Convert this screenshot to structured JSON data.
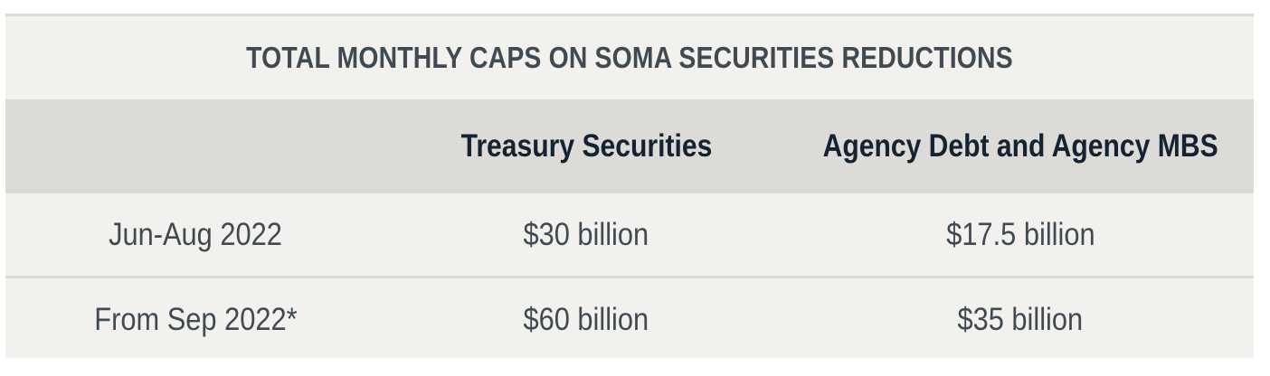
{
  "table": {
    "title": "TOTAL MONTHLY CAPS ON SOMA SECURITIES REDUCTIONS",
    "headers": [
      "",
      "Treasury Securities",
      "Agency Debt and Agency MBS"
    ],
    "rows": [
      {
        "period": "Jun-Aug 2022",
        "treasury": "$30 billion",
        "agency": "$17.5 billion"
      },
      {
        "period": "From Sep 2022*",
        "treasury": "$60 billion",
        "agency": "$35 billion"
      }
    ]
  },
  "colors": {
    "background": "#f2f1ed",
    "header_band": "#dcdbd7",
    "title_text": "#3f4a52",
    "header_text": "#152231",
    "body_text": "#3f4a52"
  }
}
